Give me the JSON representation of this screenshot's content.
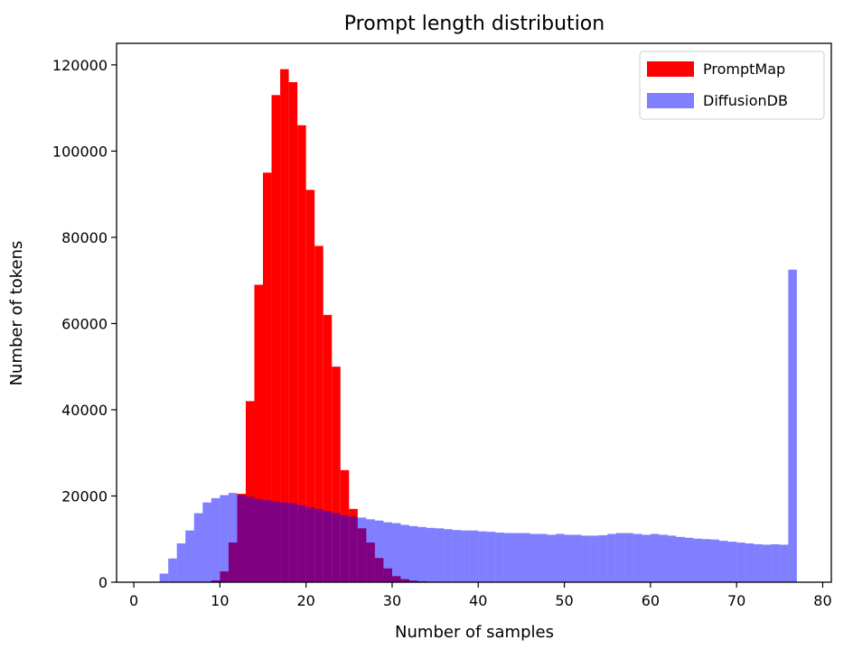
{
  "chart_data": {
    "type": "bar",
    "title": "Prompt length distribution",
    "xlabel": "Number of samples",
    "ylabel": "Number of tokens",
    "xlim": [
      -2,
      81
    ],
    "ylim": [
      0,
      125000
    ],
    "xticks": [
      0,
      10,
      20,
      30,
      40,
      50,
      60,
      70,
      80
    ],
    "yticks": [
      0,
      20000,
      40000,
      60000,
      80000,
      100000,
      120000
    ],
    "grid": false,
    "legend_position": "top-right",
    "bin_width": 1,
    "series": [
      {
        "name": "PromptMap",
        "color": "#ff0000",
        "opacity": 1.0,
        "x": [
          9,
          10,
          11,
          12,
          13,
          14,
          15,
          16,
          17,
          18,
          19,
          20,
          21,
          22,
          23,
          24,
          25,
          26,
          27,
          28,
          29,
          30,
          31,
          32,
          33,
          34,
          35,
          36,
          37
        ],
        "values": [
          400,
          2500,
          9200,
          20500,
          42000,
          69000,
          95000,
          113000,
          119000,
          116000,
          106000,
          91000,
          78000,
          62000,
          50000,
          26000,
          17000,
          12500,
          9200,
          5600,
          3200,
          1400,
          700,
          350,
          200,
          120,
          80,
          40,
          20
        ]
      },
      {
        "name": "DiffusionDB",
        "color": "#0000ff",
        "opacity": 0.5,
        "x": [
          2,
          3,
          4,
          5,
          6,
          7,
          8,
          9,
          10,
          11,
          12,
          13,
          14,
          15,
          16,
          17,
          18,
          19,
          20,
          21,
          22,
          23,
          24,
          25,
          26,
          27,
          28,
          29,
          30,
          31,
          32,
          33,
          34,
          35,
          36,
          37,
          38,
          39,
          40,
          41,
          42,
          43,
          44,
          45,
          46,
          47,
          48,
          49,
          50,
          51,
          52,
          53,
          54,
          55,
          56,
          57,
          58,
          59,
          60,
          61,
          62,
          63,
          64,
          65,
          66,
          67,
          68,
          69,
          70,
          71,
          72,
          73,
          74,
          75,
          76
        ],
        "values": [
          0,
          2000,
          5500,
          9000,
          12000,
          16000,
          18500,
          19500,
          20200,
          20700,
          20200,
          19800,
          19300,
          19000,
          18800,
          18500,
          18300,
          17800,
          17400,
          17000,
          16500,
          16000,
          15500,
          15200,
          15000,
          14600,
          14300,
          13900,
          13700,
          13300,
          13000,
          12800,
          12600,
          12500,
          12300,
          12100,
          12000,
          12000,
          11800,
          11700,
          11500,
          11400,
          11400,
          11400,
          11200,
          11200,
          11000,
          11200,
          11000,
          11000,
          10800,
          10800,
          10900,
          11200,
          11400,
          11400,
          11200,
          11000,
          11200,
          11000,
          10800,
          10500,
          10300,
          10100,
          10000,
          9900,
          9600,
          9400,
          9200,
          9000,
          8800,
          8700,
          8800,
          8700,
          72500
        ]
      }
    ]
  }
}
